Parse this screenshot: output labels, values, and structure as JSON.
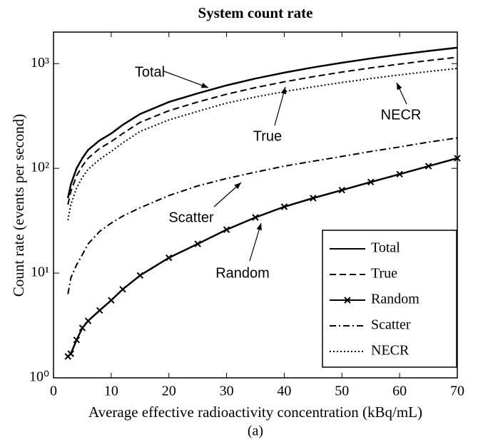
{
  "chart_data": {
    "type": "line",
    "title": "System count rate",
    "x_label": "Average effective radioactivity concentration (kBq/mL)",
    "y_label": "Count rate (events per second)",
    "caption": "(a)",
    "x": [
      2.5,
      3,
      4,
      5,
      6,
      8,
      10,
      12,
      15,
      20,
      25,
      30,
      35,
      40,
      45,
      50,
      55,
      60,
      65,
      70
    ],
    "series": [
      {
        "name": "Total",
        "color": "#000000",
        "line_style": "solid",
        "values": [
          52,
          70,
          100,
          125,
          150,
          185,
          215,
          260,
          330,
          430,
          520,
          620,
          720,
          820,
          920,
          1020,
          1120,
          1220,
          1320,
          1420
        ]
      },
      {
        "name": "True",
        "color": "#000000",
        "line_style": "dashed",
        "values": [
          45,
          60,
          85,
          105,
          125,
          155,
          180,
          215,
          275,
          355,
          430,
          510,
          590,
          670,
          750,
          830,
          910,
          990,
          1070,
          1150
        ]
      },
      {
        "name": "Random",
        "color": "#000000",
        "line_style": "solid",
        "marker": "x",
        "values": [
          1.6,
          1.7,
          2.3,
          3,
          3.5,
          4.4,
          5.5,
          7,
          9.5,
          14,
          19,
          26,
          34,
          43,
          52,
          62,
          74,
          88,
          105,
          125
        ]
      },
      {
        "name": "Scatter",
        "color": "#000000",
        "line_style": "dashdot",
        "values": [
          6.3,
          9,
          12,
          15,
          19,
          25,
          30,
          35,
          42,
          55,
          68,
          80,
          92,
          105,
          117,
          130,
          145,
          160,
          178,
          195
        ]
      },
      {
        "name": "NECR",
        "color": "#000000",
        "line_style": "dotted",
        "values": [
          32,
          45,
          65,
          82,
          98,
          122,
          145,
          175,
          225,
          290,
          350,
          420,
          480,
          540,
          600,
          660,
          720,
          780,
          840,
          900
        ]
      }
    ],
    "annotations": [
      {
        "text": "Total"
      },
      {
        "text": "True"
      },
      {
        "text": "NECR"
      },
      {
        "text": "Scatter"
      },
      {
        "text": "Random"
      }
    ],
    "xlim": [
      0,
      70
    ],
    "xticks": [
      0,
      10,
      20,
      30,
      40,
      50,
      60,
      70
    ],
    "ylim": [
      1,
      2000
    ],
    "y_scale": "log",
    "yticks": [
      {
        "value": 1,
        "label": "10⁰"
      },
      {
        "value": 10,
        "label": "10¹"
      },
      {
        "value": 100,
        "label": "10²"
      },
      {
        "value": 1000,
        "label": "10³"
      }
    ],
    "legend": "lower right",
    "grid": false
  }
}
